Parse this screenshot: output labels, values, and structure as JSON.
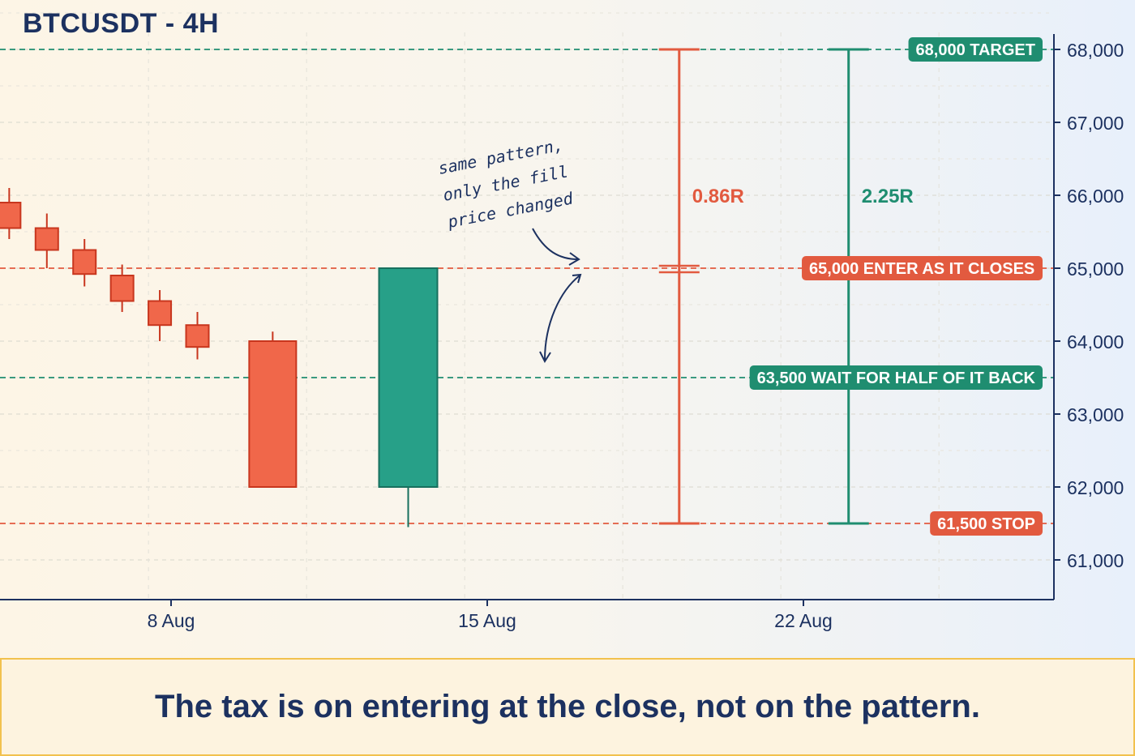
{
  "chart_data": {
    "type": "candlestick",
    "title": "BTCUSDT - 4H",
    "ylim": [
      60500,
      68250
    ],
    "yticks": [
      "61,000",
      "62,000",
      "63,000",
      "64,000",
      "65,000",
      "66,000",
      "67,000",
      "68,000"
    ],
    "ytick_values": [
      61000,
      62000,
      63000,
      64000,
      65000,
      66000,
      67000,
      68000
    ],
    "xticks": [
      "8 Aug",
      "15 Aug",
      "22 Aug"
    ],
    "xtick_values": [
      "2024-08-08",
      "2024-08-15",
      "2024-08-22"
    ],
    "xlim": [
      "2024-08-04",
      "2024-08-29"
    ],
    "grid": true,
    "candles": [
      {
        "t": "2024-08-04 10:00",
        "open": 65900,
        "high": 66100,
        "low": 65400,
        "close": 65550
      },
      {
        "t": "2024-08-05 06:00",
        "open": 65550,
        "high": 65750,
        "low": 65000,
        "close": 65250
      },
      {
        "t": "2024-08-06 02:00",
        "open": 65250,
        "high": 65400,
        "low": 64750,
        "close": 64920
      },
      {
        "t": "2024-08-06 22:00",
        "open": 64900,
        "high": 65050,
        "low": 64400,
        "close": 64550
      },
      {
        "t": "2024-08-07 18:00",
        "open": 64550,
        "high": 64700,
        "low": 64000,
        "close": 64220
      },
      {
        "t": "2024-08-08 14:00",
        "open": 64220,
        "high": 64400,
        "low": 63750,
        "close": 63920
      },
      {
        "t": "2024-08-10 06:00",
        "open": 64000,
        "high": 64130,
        "low": 62000,
        "close": 62000
      },
      {
        "t": "2024-08-13 06:00",
        "open": 62000,
        "high": 65000,
        "low": 61450,
        "close": 65000
      }
    ],
    "levels": [
      {
        "price": 68000,
        "label": "68,000 TARGET",
        "color": "#1f8d70"
      },
      {
        "price": 65000,
        "label": "65,000 ENTER AS IT CLOSES",
        "color": "#e25a3f"
      },
      {
        "price": 63500,
        "label": "63,500 WAIT FOR HALF OF IT BACK",
        "color": "#1f8d70"
      },
      {
        "price": 61500,
        "label": "61,500 STOP",
        "color": "#e25a3f"
      }
    ],
    "rr_bars": [
      {
        "t": "2024-08-19 06:00",
        "stop": 61500,
        "entry": 65000,
        "target": 68000,
        "label": "0.86R",
        "color": "#e25a3f"
      },
      {
        "t": "2024-08-23 00:00",
        "stop": 61500,
        "entry": 63500,
        "target": 68000,
        "label": "2.25R",
        "color": "#1f8d70"
      }
    ],
    "annotation": [
      "same pattern,",
      "only the fill",
      "price changed"
    ]
  },
  "footer": {
    "text": "The tax is on entering at the close, not on the pattern."
  },
  "colors": {
    "bear": "#f0674a",
    "bull": "#27a088",
    "red_line": "#e25a3f",
    "green_line": "#1f8d70",
    "axis": "#1c3160"
  }
}
